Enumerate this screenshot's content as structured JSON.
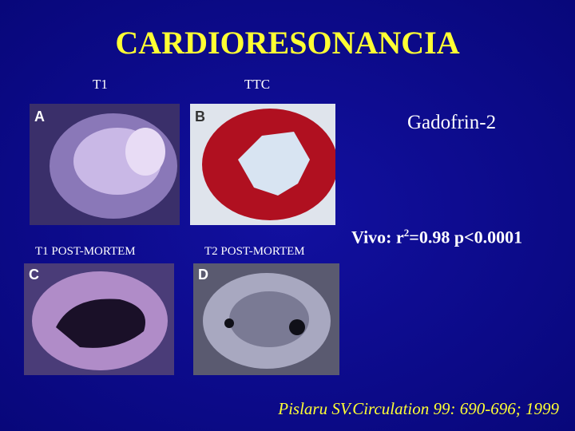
{
  "header": {
    "title": "CARDIORESONANCIA"
  },
  "panels": [
    {
      "label": "T1",
      "letter": "A"
    },
    {
      "label": "TTC",
      "letter": "B"
    },
    {
      "label": "T1 POST-MORTEM",
      "letter": "C"
    },
    {
      "label": "T2 POST-MORTEM",
      "letter": "D"
    }
  ],
  "agent": "Gadofrin-2",
  "stats": {
    "prefix": "Vivo: r",
    "sup": "2",
    "rest": "=0.98 p<0.0001"
  },
  "citation": "Pislaru SV.Circulation 99: 690-696; 1999"
}
